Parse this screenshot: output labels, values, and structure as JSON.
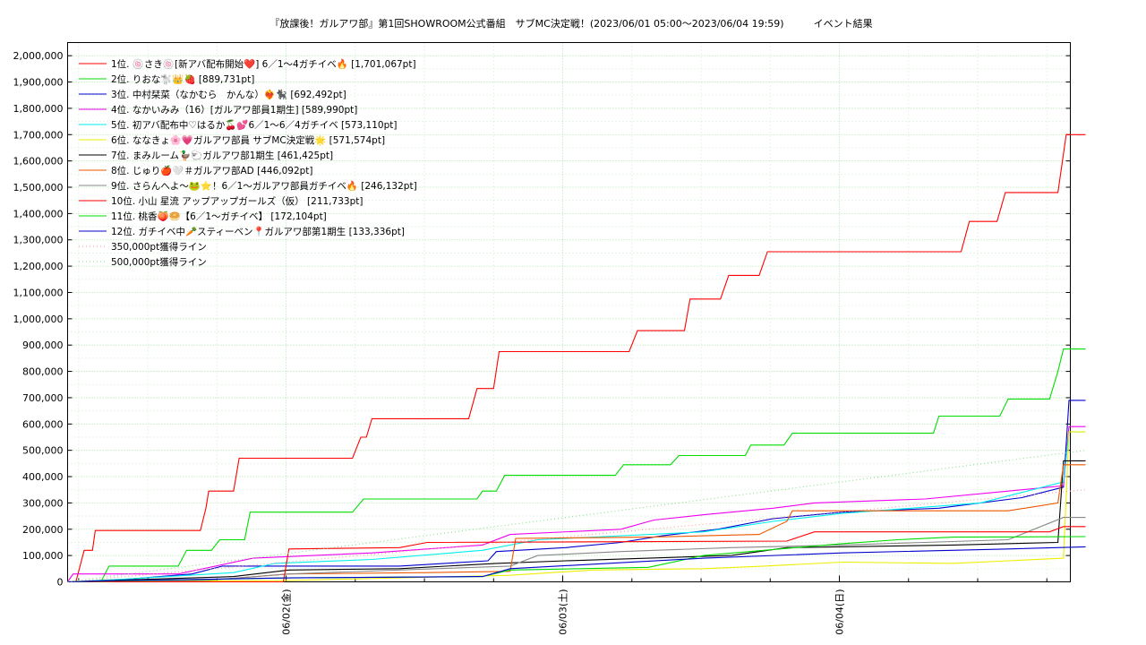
{
  "chart_data": {
    "type": "line",
    "title": "『放課後！ガルアワ部』第1回SHOWROOM公式番組　サブMC決定戦！(2023/06/01 05:00～2023/06/04 19:59)　　　イベント結果",
    "xlabel": "",
    "ylabel": "",
    "xlim": [
      0,
      3.625
    ],
    "ylim": [
      0,
      2050000
    ],
    "x_unit": "days since 2023/06/01 05:00",
    "x_ticks": [
      {
        "x": 0.79,
        "label": "06/02(金)"
      },
      {
        "x": 1.79,
        "label": "06/03(土)"
      },
      {
        "x": 2.79,
        "label": "06/04(日)"
      }
    ],
    "y_ticks": [
      {
        "v": 0,
        "label": "0"
      },
      {
        "v": 100000,
        "label": "100,000"
      },
      {
        "v": 200000,
        "label": "200,000"
      },
      {
        "v": 300000,
        "label": "300,000"
      },
      {
        "v": 400000,
        "label": "400,000"
      },
      {
        "v": 500000,
        "label": "500,000"
      },
      {
        "v": 600000,
        "label": "600,000"
      },
      {
        "v": 700000,
        "label": "700,000"
      },
      {
        "v": 800000,
        "label": "800,000"
      },
      {
        "v": 900000,
        "label": "900,000"
      },
      {
        "v": 1000000,
        "label": "1,000,000"
      },
      {
        "v": 1100000,
        "label": "1,100,000"
      },
      {
        "v": 1200000,
        "label": "1,200,000"
      },
      {
        "v": 1300000,
        "label": "1,300,000"
      },
      {
        "v": 1400000,
        "label": "1,400,000"
      },
      {
        "v": 1500000,
        "label": "1,500,000"
      },
      {
        "v": 1600000,
        "label": "1,600,000"
      },
      {
        "v": 1700000,
        "label": "1,700,000"
      },
      {
        "v": 1800000,
        "label": "1,800,000"
      },
      {
        "v": 1900000,
        "label": "1,900,000"
      },
      {
        "v": 2000000,
        "label": "2,000,000"
      }
    ],
    "grid": true,
    "legend_position": "top-left",
    "series": [
      {
        "name": " 1位. 🍥さき🍥[新アバ配布開始❤️] 6／1〜4ガチイベ🔥 [1,701,067pt]",
        "color": "#ff0000",
        "style": "solid",
        "points": [
          [
            0,
            0
          ],
          [
            0.03,
            0
          ],
          [
            0.06,
            120000
          ],
          [
            0.09,
            120000
          ],
          [
            0.1,
            195000
          ],
          [
            0.48,
            195000
          ],
          [
            0.5,
            280000
          ],
          [
            0.51,
            345000
          ],
          [
            0.6,
            345000
          ],
          [
            0.62,
            470000
          ],
          [
            1.03,
            470000
          ],
          [
            1.06,
            550000
          ],
          [
            1.08,
            550000
          ],
          [
            1.1,
            620000
          ],
          [
            1.45,
            620000
          ],
          [
            1.48,
            735000
          ],
          [
            1.54,
            735000
          ],
          [
            1.56,
            875000
          ],
          [
            2.03,
            875000
          ],
          [
            2.06,
            955000
          ],
          [
            2.23,
            955000
          ],
          [
            2.25,
            1075000
          ],
          [
            2.36,
            1075000
          ],
          [
            2.39,
            1165000
          ],
          [
            2.5,
            1165000
          ],
          [
            2.53,
            1255000
          ],
          [
            3.23,
            1255000
          ],
          [
            3.26,
            1370000
          ],
          [
            3.36,
            1370000
          ],
          [
            3.39,
            1480000
          ],
          [
            3.58,
            1480000
          ],
          [
            3.61,
            1700000
          ],
          [
            3.68,
            1700000
          ]
        ]
      },
      {
        "name": " 2位. りおな🐩👑🍓 [889,731pt]",
        "color": "#00dd00",
        "style": "solid",
        "points": [
          [
            0,
            0
          ],
          [
            0.12,
            0
          ],
          [
            0.15,
            60000
          ],
          [
            0.4,
            60000
          ],
          [
            0.43,
            120000
          ],
          [
            0.52,
            120000
          ],
          [
            0.55,
            160000
          ],
          [
            0.64,
            160000
          ],
          [
            0.66,
            265000
          ],
          [
            1.03,
            265000
          ],
          [
            1.07,
            315000
          ],
          [
            1.48,
            315000
          ],
          [
            1.5,
            345000
          ],
          [
            1.55,
            345000
          ],
          [
            1.58,
            405000
          ],
          [
            1.98,
            405000
          ],
          [
            2.01,
            445000
          ],
          [
            2.18,
            445000
          ],
          [
            2.21,
            480000
          ],
          [
            2.45,
            480000
          ],
          [
            2.47,
            520000
          ],
          [
            2.59,
            520000
          ],
          [
            2.62,
            565000
          ],
          [
            3.13,
            565000
          ],
          [
            3.15,
            630000
          ],
          [
            3.37,
            630000
          ],
          [
            3.4,
            695000
          ],
          [
            3.55,
            695000
          ],
          [
            3.58,
            800000
          ],
          [
            3.6,
            885000
          ],
          [
            3.68,
            885000
          ]
        ]
      },
      {
        "name": " 3位. 中村栞菜（なかむら　かんな）❤️‍🔥🐈‍⬛ [692,492pt]",
        "color": "#0000cc",
        "style": "solid",
        "points": [
          [
            0,
            0
          ],
          [
            0.1,
            0
          ],
          [
            0.45,
            30000
          ],
          [
            0.56,
            60000
          ],
          [
            1.2,
            60000
          ],
          [
            1.52,
            80000
          ],
          [
            1.55,
            115000
          ],
          [
            1.8,
            130000
          ],
          [
            2.0,
            150000
          ],
          [
            2.15,
            175000
          ],
          [
            2.35,
            200000
          ],
          [
            2.55,
            240000
          ],
          [
            2.8,
            265000
          ],
          [
            3.15,
            280000
          ],
          [
            3.45,
            320000
          ],
          [
            3.6,
            360000
          ],
          [
            3.62,
            690000
          ],
          [
            3.68,
            690000
          ]
        ]
      },
      {
        "name": " 4位. なかいみみ（16）[ガルアワ部員1期生] [589,990pt]",
        "color": "#ee00ee",
        "style": "solid",
        "points": [
          [
            0,
            0
          ],
          [
            0.02,
            30000
          ],
          [
            0.4,
            30000
          ],
          [
            0.67,
            90000
          ],
          [
            1.1,
            110000
          ],
          [
            1.5,
            140000
          ],
          [
            1.6,
            180000
          ],
          [
            2.0,
            200000
          ],
          [
            2.12,
            235000
          ],
          [
            2.3,
            255000
          ],
          [
            2.55,
            280000
          ],
          [
            2.7,
            300000
          ],
          [
            3.1,
            315000
          ],
          [
            3.4,
            345000
          ],
          [
            3.6,
            365000
          ],
          [
            3.62,
            590000
          ],
          [
            3.68,
            590000
          ]
        ]
      },
      {
        "name": " 5位. 初アバ配布中♡はるか🍒💕6／1〜6／4ガチイベ [573,110pt]",
        "color": "#00eeee",
        "style": "solid",
        "points": [
          [
            0,
            0
          ],
          [
            0.2,
            10000
          ],
          [
            0.6,
            35000
          ],
          [
            0.75,
            70000
          ],
          [
            1.1,
            85000
          ],
          [
            1.5,
            120000
          ],
          [
            1.7,
            160000
          ],
          [
            2.3,
            190000
          ],
          [
            2.55,
            230000
          ],
          [
            2.8,
            260000
          ],
          [
            3.3,
            300000
          ],
          [
            3.6,
            380000
          ],
          [
            3.62,
            570000
          ],
          [
            3.68,
            570000
          ]
        ]
      },
      {
        "name": " 6位. ななきょ🌸💗ガルアワ部員 サブMC決定戦🌟 [571,574pt]",
        "color": "#eeee00",
        "style": "solid",
        "points": [
          [
            0,
            0
          ],
          [
            0.8,
            5000
          ],
          [
            1.6,
            25000
          ],
          [
            1.9,
            45000
          ],
          [
            2.3,
            50000
          ],
          [
            2.52,
            60000
          ],
          [
            2.8,
            75000
          ],
          [
            3.2,
            70000
          ],
          [
            3.4,
            80000
          ],
          [
            3.6,
            90000
          ],
          [
            3.62,
            570000
          ],
          [
            3.68,
            570000
          ]
        ]
      },
      {
        "name": " 7位. まみルーム🦆🐑ガルアワ部1期生 [461,425pt]",
        "color": "#000000",
        "style": "solid",
        "points": [
          [
            0,
            0
          ],
          [
            0.6,
            20000
          ],
          [
            0.8,
            45000
          ],
          [
            1.2,
            50000
          ],
          [
            1.55,
            70000
          ],
          [
            1.8,
            80000
          ],
          [
            2.4,
            100000
          ],
          [
            2.6,
            130000
          ],
          [
            3.2,
            140000
          ],
          [
            3.58,
            150000
          ],
          [
            3.6,
            460000
          ],
          [
            3.68,
            460000
          ]
        ]
      },
      {
        "name": " 8位. じゅり🍎🤍＃ガルアワ部AD [446,092pt]",
        "color": "#ee5500",
        "style": "solid",
        "points": [
          [
            0,
            0
          ],
          [
            0.5,
            5000
          ],
          [
            0.8,
            30000
          ],
          [
            1.3,
            35000
          ],
          [
            1.6,
            40000
          ],
          [
            1.62,
            165000
          ],
          [
            2.1,
            170000
          ],
          [
            2.5,
            180000
          ],
          [
            2.6,
            230000
          ],
          [
            2.62,
            270000
          ],
          [
            3.4,
            270000
          ],
          [
            3.58,
            300000
          ],
          [
            3.6,
            445000
          ],
          [
            3.68,
            445000
          ]
        ]
      },
      {
        "name": " 9位. さらんへよ〜🐸⭐️！6／1〜ガルアワ部員ガチイベ🔥 [246,132pt]",
        "color": "#888888",
        "style": "solid",
        "points": [
          [
            0,
            0
          ],
          [
            0.5,
            5000
          ],
          [
            0.8,
            30000
          ],
          [
            1.6,
            60000
          ],
          [
            1.7,
            100000
          ],
          [
            2.0,
            115000
          ],
          [
            2.4,
            130000
          ],
          [
            2.8,
            140000
          ],
          [
            3.4,
            160000
          ],
          [
            3.6,
            245000
          ],
          [
            3.68,
            245000
          ]
        ]
      },
      {
        "name": "10位. 小山 星流 アップアップガールズ（仮） [211,733pt]",
        "color": "#ff0000",
        "style": "solid",
        "points": [
          [
            0,
            0
          ],
          [
            0.78,
            0
          ],
          [
            0.8,
            125000
          ],
          [
            1.2,
            130000
          ],
          [
            1.3,
            150000
          ],
          [
            2.6,
            155000
          ],
          [
            2.7,
            190000
          ],
          [
            3.55,
            190000
          ],
          [
            3.6,
            210000
          ],
          [
            3.68,
            210000
          ]
        ]
      },
      {
        "name": "11位. 桃香🍑🥯【6／1〜ガチイベ】 [172,104pt]",
        "color": "#00dd00",
        "style": "solid",
        "points": [
          [
            0,
            0
          ],
          [
            0.8,
            15000
          ],
          [
            1.5,
            20000
          ],
          [
            1.6,
            45000
          ],
          [
            2.1,
            55000
          ],
          [
            2.3,
            100000
          ],
          [
            2.8,
            145000
          ],
          [
            3.0,
            160000
          ],
          [
            3.2,
            170000
          ],
          [
            3.68,
            172000
          ]
        ]
      },
      {
        "name": "12位. ガチイベ中🥕スティーベン📍ガルアワ部第1期生 [133,336pt]",
        "color": "#0000cc",
        "style": "solid",
        "points": [
          [
            0,
            0
          ],
          [
            0.2,
            5000
          ],
          [
            0.8,
            15000
          ],
          [
            1.5,
            20000
          ],
          [
            1.6,
            50000
          ],
          [
            2.3,
            90000
          ],
          [
            2.8,
            110000
          ],
          [
            3.4,
            125000
          ],
          [
            3.68,
            133000
          ]
        ]
      },
      {
        "name": "350,000pt獲得ライン",
        "color": "#ff9999",
        "style": "dotted",
        "points": [
          [
            0,
            0
          ],
          [
            3.68,
            350000
          ]
        ]
      },
      {
        "name": "500,000pt獲得ライン",
        "color": "#88dd88",
        "style": "dotted",
        "points": [
          [
            0,
            0
          ],
          [
            3.68,
            500000
          ]
        ]
      }
    ]
  }
}
